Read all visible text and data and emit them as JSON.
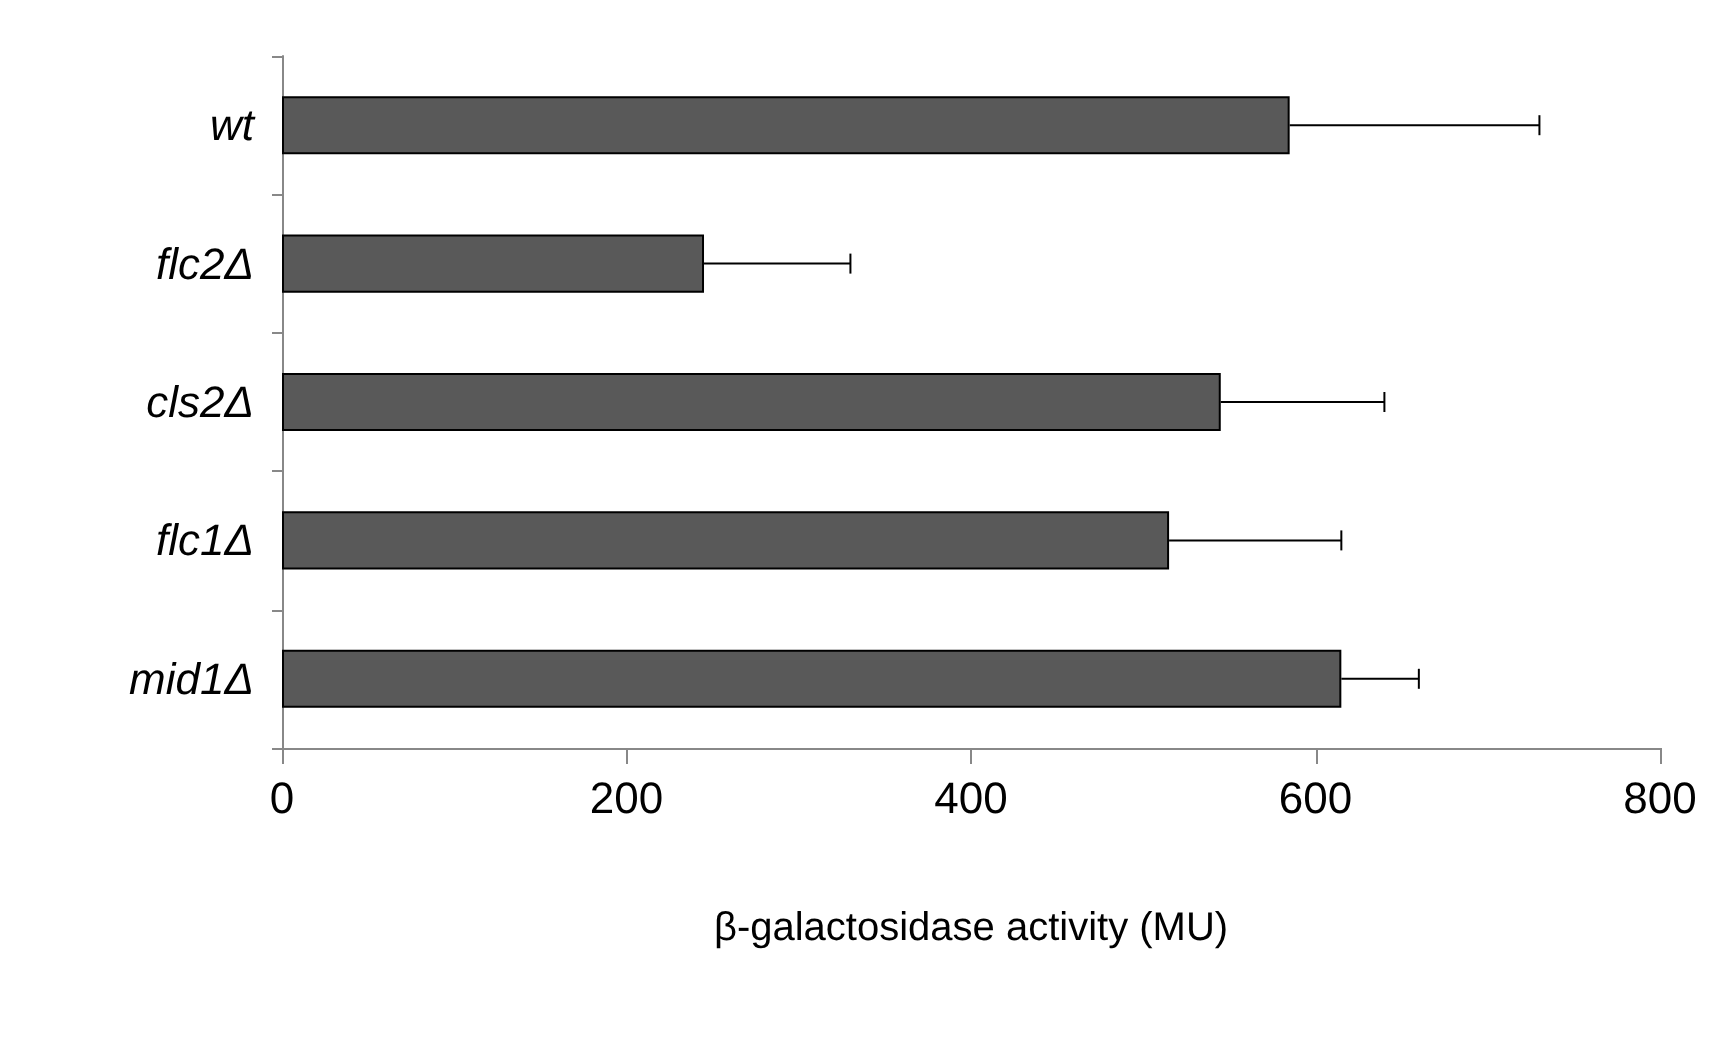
{
  "chart_data": {
    "type": "bar",
    "orientation": "horizontal",
    "categories": [
      "wt",
      "flc2Δ",
      "cls2Δ",
      "flc1Δ",
      "mid1Δ"
    ],
    "values": [
      585,
      245,
      545,
      515,
      615
    ],
    "errors": [
      [
        585,
        730
      ],
      [
        245,
        330
      ],
      [
        545,
        640
      ],
      [
        515,
        615
      ],
      [
        615,
        660
      ]
    ],
    "color": "#595959",
    "xlabel": "β-galactosidase activity (MU)",
    "xlim": [
      0,
      800
    ],
    "xticks": [
      0,
      200,
      400,
      600,
      800
    ],
    "grid": false
  }
}
